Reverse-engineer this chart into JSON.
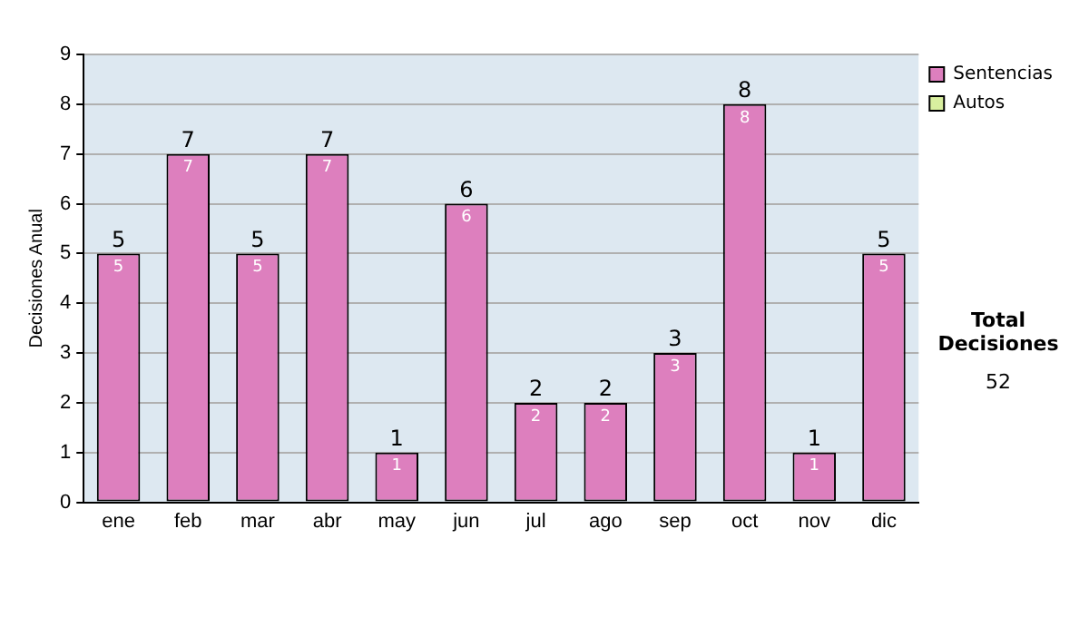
{
  "chart_data": {
    "type": "bar",
    "ylabel": "Decisiones Anual",
    "categories": [
      "ene",
      "feb",
      "mar",
      "abr",
      "may",
      "jun",
      "jul",
      "ago",
      "sep",
      "oct",
      "nov",
      "dic"
    ],
    "stacked": true,
    "series": [
      {
        "name": "Sentencias",
        "color": "#dd7fbe",
        "values": [
          5,
          7,
          5,
          7,
          1,
          6,
          2,
          2,
          3,
          8,
          1,
          5
        ],
        "value_labels": [
          "5",
          "7",
          "5",
          "7",
          "1",
          "6",
          "2",
          "2",
          "3",
          "8",
          "1",
          "5"
        ]
      },
      {
        "name": "Autos",
        "color": "#d9ef9f",
        "values": [
          0,
          0,
          0,
          0,
          0,
          0,
          0,
          0,
          0,
          0,
          0,
          0
        ]
      }
    ],
    "totals": [
      "5",
      "7",
      "5",
      "7",
      "1",
      "6",
      "2",
      "2",
      "3",
      "8",
      "1",
      "5"
    ],
    "ylim": [
      0,
      9
    ],
    "yticks": [
      0,
      1,
      2,
      3,
      4,
      5,
      6,
      7,
      8,
      9
    ],
    "grid": "y",
    "legend": "right",
    "annotations": [
      "Total Decisiones",
      "52"
    ]
  }
}
